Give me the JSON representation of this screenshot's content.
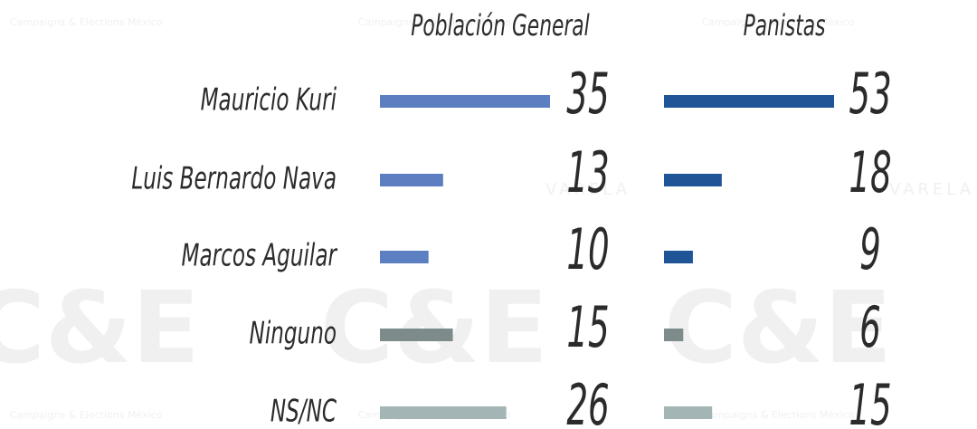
{
  "chart_data": {
    "type": "bar",
    "orientation": "horizontal",
    "categories": [
      "Mauricio Kuri",
      "Luis Bernardo Nava",
      "Marcos Aguilar",
      "Ninguno",
      "NS/NC"
    ],
    "series": [
      {
        "name": "Población General",
        "values": [
          35,
          13,
          10,
          15,
          26
        ],
        "colors": [
          "#5b7fc0",
          "#5b7fc0",
          "#5b7fc0",
          "#7d8b8b",
          "#a3b5b5"
        ],
        "xlim": [
          0,
          35
        ]
      },
      {
        "name": "Panistas",
        "values": [
          53,
          18,
          9,
          6,
          15
        ],
        "colors": [
          "#1f5597",
          "#1f5597",
          "#1f5597",
          "#7d8b8b",
          "#a3b5b5"
        ],
        "xlim": [
          0,
          53
        ]
      }
    ],
    "watermark": {
      "logo": "C&E",
      "caption": "Campaigns & Elections México",
      "brand": "VARELA"
    }
  }
}
